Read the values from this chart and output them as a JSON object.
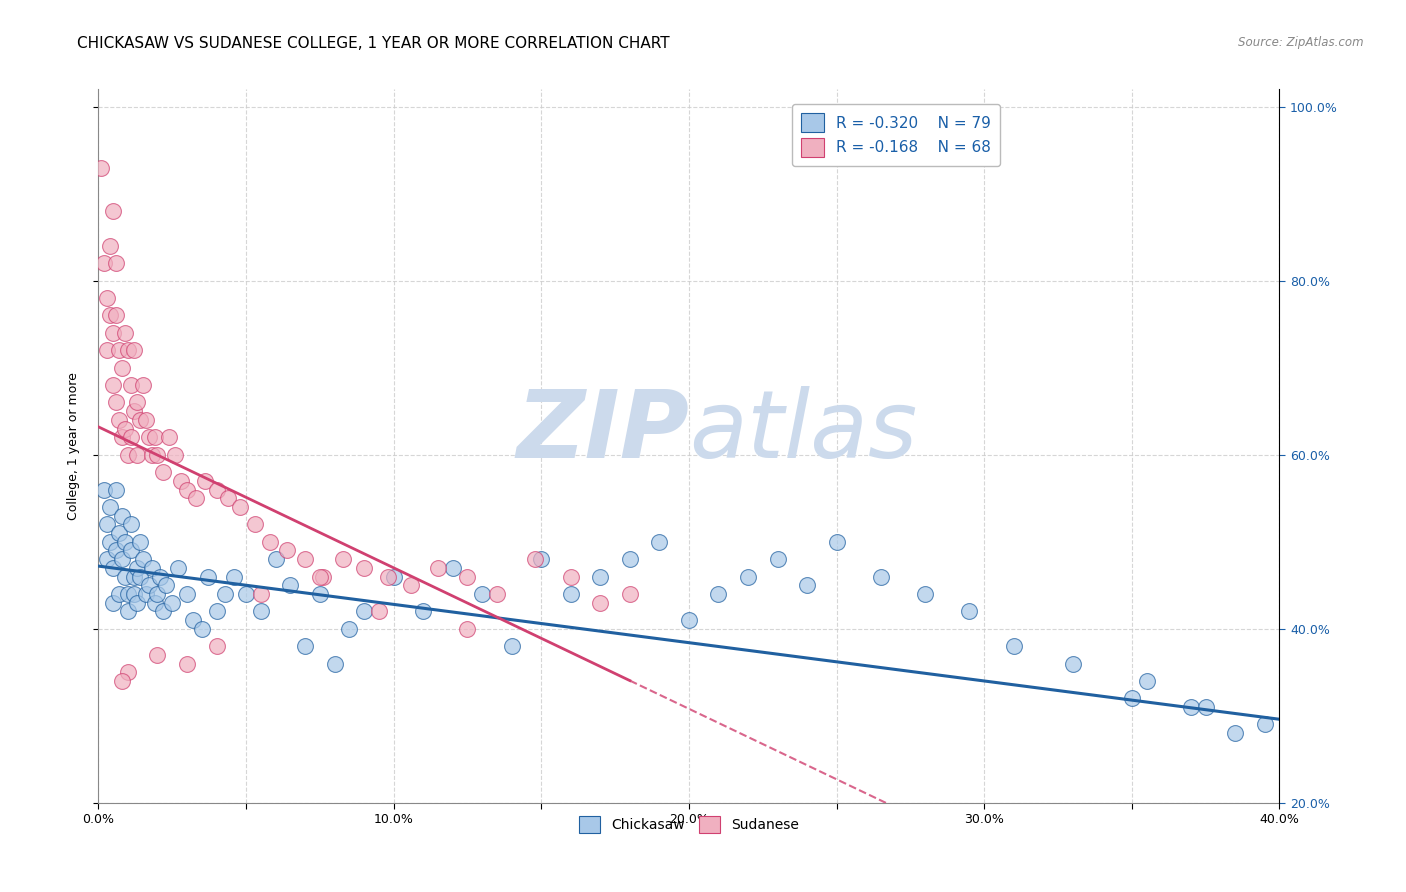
{
  "title": "CHICKASAW VS SUDANESE COLLEGE, 1 YEAR OR MORE CORRELATION CHART",
  "source": "Source: ZipAtlas.com",
  "ylabel": "College, 1 year or more",
  "xlim": [
    0.0,
    0.4
  ],
  "ylim": [
    0.2,
    1.02
  ],
  "xticks": [
    0.0,
    0.05,
    0.1,
    0.15,
    0.2,
    0.25,
    0.3,
    0.35,
    0.4
  ],
  "xticklabels": [
    "0.0%",
    "",
    "10.0%",
    "",
    "20.0%",
    "",
    "30.0%",
    "",
    "40.0%"
  ],
  "yticks": [
    0.2,
    0.4,
    0.6,
    0.8,
    1.0
  ],
  "yticklabels_right": [
    "20.0%",
    "40.0%",
    "60.0%",
    "80.0%",
    "100.0%"
  ],
  "chickasaw_R": -0.32,
  "chickasaw_N": 79,
  "sudanese_R": -0.168,
  "sudanese_N": 68,
  "blue_scatter_color": "#a8c8e8",
  "pink_scatter_color": "#f0b0c0",
  "blue_line_color": "#2060a0",
  "pink_line_color": "#d04070",
  "text_color": "#1a5fa8",
  "watermark_color": "#ccdaec",
  "background_color": "#ffffff",
  "grid_color": "#cccccc",
  "chickasaw_x": [
    0.002,
    0.003,
    0.003,
    0.004,
    0.004,
    0.005,
    0.005,
    0.006,
    0.006,
    0.007,
    0.007,
    0.008,
    0.008,
    0.009,
    0.009,
    0.01,
    0.01,
    0.011,
    0.011,
    0.012,
    0.012,
    0.013,
    0.013,
    0.014,
    0.014,
    0.015,
    0.016,
    0.017,
    0.018,
    0.019,
    0.02,
    0.021,
    0.022,
    0.023,
    0.025,
    0.027,
    0.03,
    0.032,
    0.035,
    0.037,
    0.04,
    0.043,
    0.046,
    0.05,
    0.055,
    0.06,
    0.065,
    0.07,
    0.075,
    0.08,
    0.085,
    0.09,
    0.1,
    0.11,
    0.12,
    0.13,
    0.14,
    0.15,
    0.16,
    0.17,
    0.18,
    0.19,
    0.2,
    0.21,
    0.22,
    0.23,
    0.24,
    0.25,
    0.265,
    0.28,
    0.295,
    0.31,
    0.33,
    0.35,
    0.37,
    0.385,
    0.395,
    0.375,
    0.355
  ],
  "chickasaw_y": [
    0.56,
    0.52,
    0.48,
    0.5,
    0.54,
    0.43,
    0.47,
    0.56,
    0.49,
    0.51,
    0.44,
    0.48,
    0.53,
    0.46,
    0.5,
    0.42,
    0.44,
    0.52,
    0.49,
    0.46,
    0.44,
    0.47,
    0.43,
    0.5,
    0.46,
    0.48,
    0.44,
    0.45,
    0.47,
    0.43,
    0.44,
    0.46,
    0.42,
    0.45,
    0.43,
    0.47,
    0.44,
    0.41,
    0.4,
    0.46,
    0.42,
    0.44,
    0.46,
    0.44,
    0.42,
    0.48,
    0.45,
    0.38,
    0.44,
    0.36,
    0.4,
    0.42,
    0.46,
    0.42,
    0.47,
    0.44,
    0.38,
    0.48,
    0.44,
    0.46,
    0.48,
    0.5,
    0.41,
    0.44,
    0.46,
    0.48,
    0.45,
    0.5,
    0.46,
    0.44,
    0.42,
    0.38,
    0.36,
    0.32,
    0.31,
    0.28,
    0.29,
    0.31,
    0.34
  ],
  "sudanese_x": [
    0.001,
    0.002,
    0.003,
    0.003,
    0.004,
    0.004,
    0.005,
    0.005,
    0.005,
    0.006,
    0.006,
    0.006,
    0.007,
    0.007,
    0.008,
    0.008,
    0.009,
    0.009,
    0.01,
    0.01,
    0.011,
    0.011,
    0.012,
    0.012,
    0.013,
    0.013,
    0.014,
    0.015,
    0.016,
    0.017,
    0.018,
    0.019,
    0.02,
    0.022,
    0.024,
    0.026,
    0.028,
    0.03,
    0.033,
    0.036,
    0.04,
    0.044,
    0.048,
    0.053,
    0.058,
    0.064,
    0.07,
    0.076,
    0.083,
    0.09,
    0.098,
    0.106,
    0.115,
    0.125,
    0.135,
    0.148,
    0.16,
    0.17,
    0.18,
    0.125,
    0.095,
    0.075,
    0.055,
    0.04,
    0.03,
    0.02,
    0.01,
    0.008
  ],
  "sudanese_y": [
    0.93,
    0.82,
    0.78,
    0.72,
    0.84,
    0.76,
    0.88,
    0.74,
    0.68,
    0.82,
    0.76,
    0.66,
    0.72,
    0.64,
    0.7,
    0.62,
    0.74,
    0.63,
    0.72,
    0.6,
    0.68,
    0.62,
    0.72,
    0.65,
    0.66,
    0.6,
    0.64,
    0.68,
    0.64,
    0.62,
    0.6,
    0.62,
    0.6,
    0.58,
    0.62,
    0.6,
    0.57,
    0.56,
    0.55,
    0.57,
    0.56,
    0.55,
    0.54,
    0.52,
    0.5,
    0.49,
    0.48,
    0.46,
    0.48,
    0.47,
    0.46,
    0.45,
    0.47,
    0.46,
    0.44,
    0.48,
    0.46,
    0.43,
    0.44,
    0.4,
    0.42,
    0.46,
    0.44,
    0.38,
    0.36,
    0.37,
    0.35,
    0.34
  ],
  "title_fontsize": 11,
  "axis_label_fontsize": 9,
  "tick_fontsize": 9,
  "legend_fontsize": 11
}
